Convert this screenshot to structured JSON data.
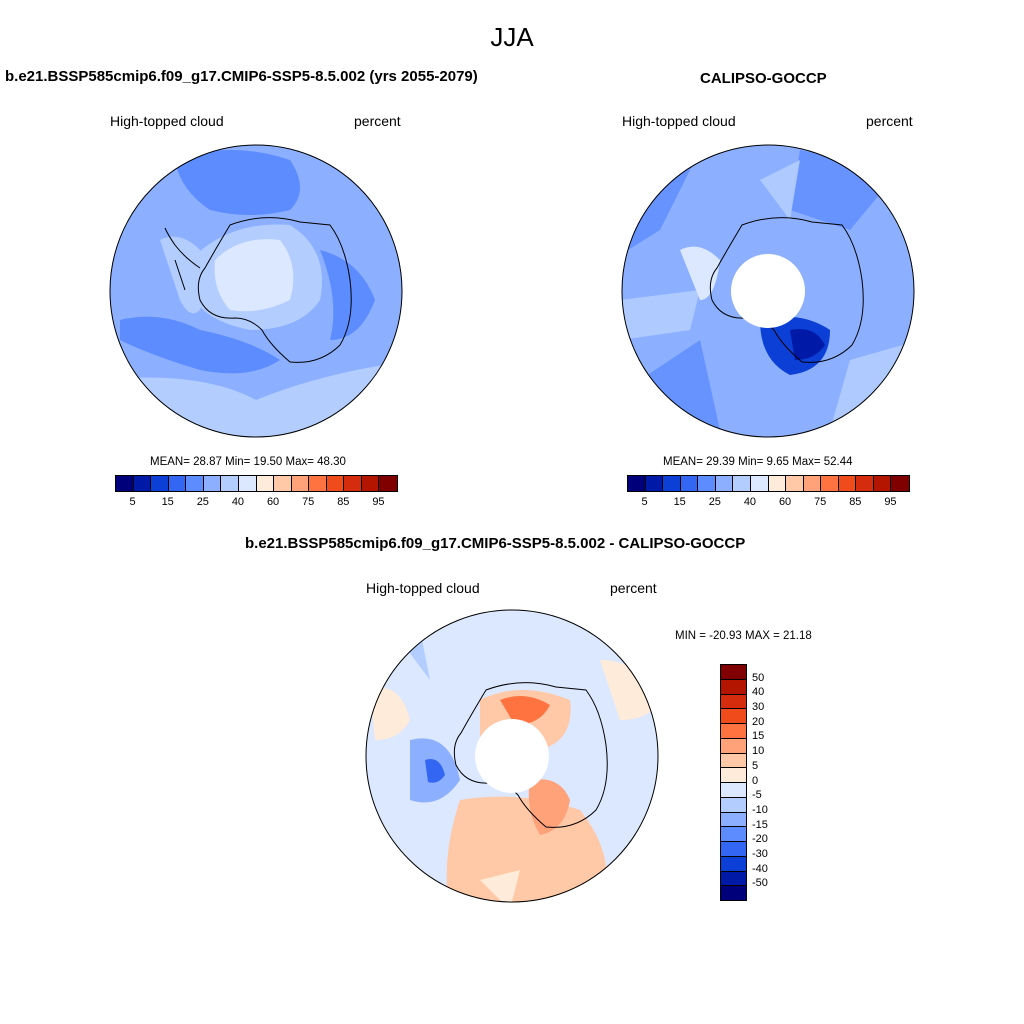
{
  "figure": {
    "title": "JJA",
    "panel1": {
      "title": "b.e21.BSSP585cmip6.f09_g17.CMIP6-SSP5-8.5.002 (yrs 2055-2079)",
      "left_label": "High-topped cloud",
      "right_label": "percent",
      "stats": "MEAN=  28.87  Min=  19.50  Max=  48.30"
    },
    "panel2": {
      "title": "CALIPSO-GOCCP",
      "left_label": "High-topped cloud",
      "right_label": "percent",
      "stats": "MEAN=  29.39  Min=   9.65  Max=  52.44"
    },
    "panel3": {
      "title": "b.e21.BSSP585cmip6.f09_g17.CMIP6-SSP5-8.5.002 - CALIPSO-GOCCP",
      "left_label": "High-topped cloud",
      "right_label": "percent",
      "stats": "MIN = -20.93 MAX =  21.18"
    },
    "colorbar_horizontal": {
      "tick_labels": [
        "5",
        "15",
        "25",
        "40",
        "60",
        "75",
        "85",
        "95"
      ],
      "colors": [
        "#00007a",
        "#001aa8",
        "#0b3fd6",
        "#3366f2",
        "#5c8cff",
        "#8cb0ff",
        "#b3cdff",
        "#dbe8ff",
        "#ffebd9",
        "#ffc8a6",
        "#ffa27a",
        "#ff7340",
        "#f04b1a",
        "#d42c0c",
        "#b31500",
        "#800000"
      ]
    },
    "colorbar_vertical": {
      "tick_labels": [
        "50",
        "40",
        "30",
        "20",
        "15",
        "10",
        "5",
        "0",
        "-5",
        "-10",
        "-15",
        "-20",
        "-30",
        "-40",
        "-50"
      ],
      "colors": [
        "#800000",
        "#b31500",
        "#d42c0c",
        "#f04b1a",
        "#ff7340",
        "#ffa27a",
        "#ffc8a6",
        "#ffebd9",
        "#dbe8ff",
        "#b3cdff",
        "#8cb0ff",
        "#5c8cff",
        "#3366f2",
        "#0b3fd6",
        "#001aa8",
        "#00007a"
      ]
    }
  }
}
